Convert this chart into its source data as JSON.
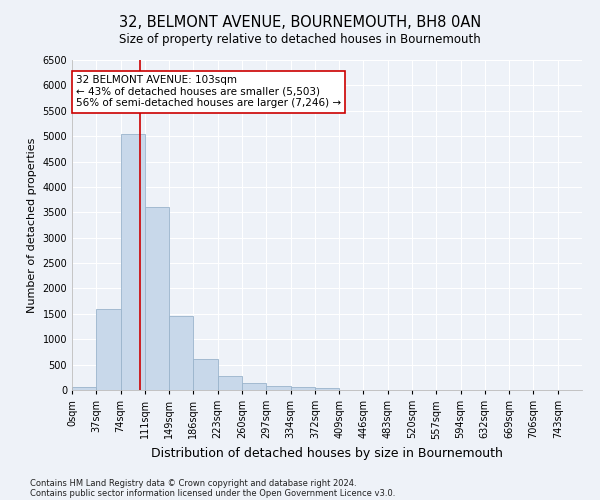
{
  "title": "32, BELMONT AVENUE, BOURNEMOUTH, BH8 0AN",
  "subtitle": "Size of property relative to detached houses in Bournemouth",
  "xlabel": "Distribution of detached houses by size in Bournemouth",
  "ylabel": "Number of detached properties",
  "footnote1": "Contains HM Land Registry data © Crown copyright and database right 2024.",
  "footnote2": "Contains public sector information licensed under the Open Government Licence v3.0.",
  "bar_labels": [
    "0sqm",
    "37sqm",
    "74sqm",
    "111sqm",
    "149sqm",
    "186sqm",
    "223sqm",
    "260sqm",
    "297sqm",
    "334sqm",
    "372sqm",
    "409sqm",
    "446sqm",
    "483sqm",
    "520sqm",
    "557sqm",
    "594sqm",
    "632sqm",
    "669sqm",
    "706sqm",
    "743sqm"
  ],
  "bar_values": [
    50,
    1600,
    5050,
    3600,
    1450,
    620,
    270,
    130,
    80,
    50,
    30,
    0,
    0,
    0,
    0,
    0,
    0,
    0,
    0,
    0,
    0
  ],
  "bar_color": "#c8d8ea",
  "bar_edge_color": "#9ab4cc",
  "ylim": [
    0,
    6500
  ],
  "yticks": [
    0,
    500,
    1000,
    1500,
    2000,
    2500,
    3000,
    3500,
    4000,
    4500,
    5000,
    5500,
    6000,
    6500
  ],
  "property_size_sqm": 103,
  "vline_color": "#cc0000",
  "annotation_text": "32 BELMONT AVENUE: 103sqm\n← 43% of detached houses are smaller (5,503)\n56% of semi-detached houses are larger (7,246) →",
  "annotation_box_color": "white",
  "annotation_box_edgecolor": "#cc0000",
  "bg_color": "#eef2f8",
  "plot_bg_color": "#eef2f8",
  "grid_color": "#ffffff",
  "title_fontsize": 10.5,
  "subtitle_fontsize": 8.5,
  "ylabel_fontsize": 8,
  "xlabel_fontsize": 9,
  "tick_fontsize": 7,
  "annot_fontsize": 7.5,
  "footnote_fontsize": 6
}
